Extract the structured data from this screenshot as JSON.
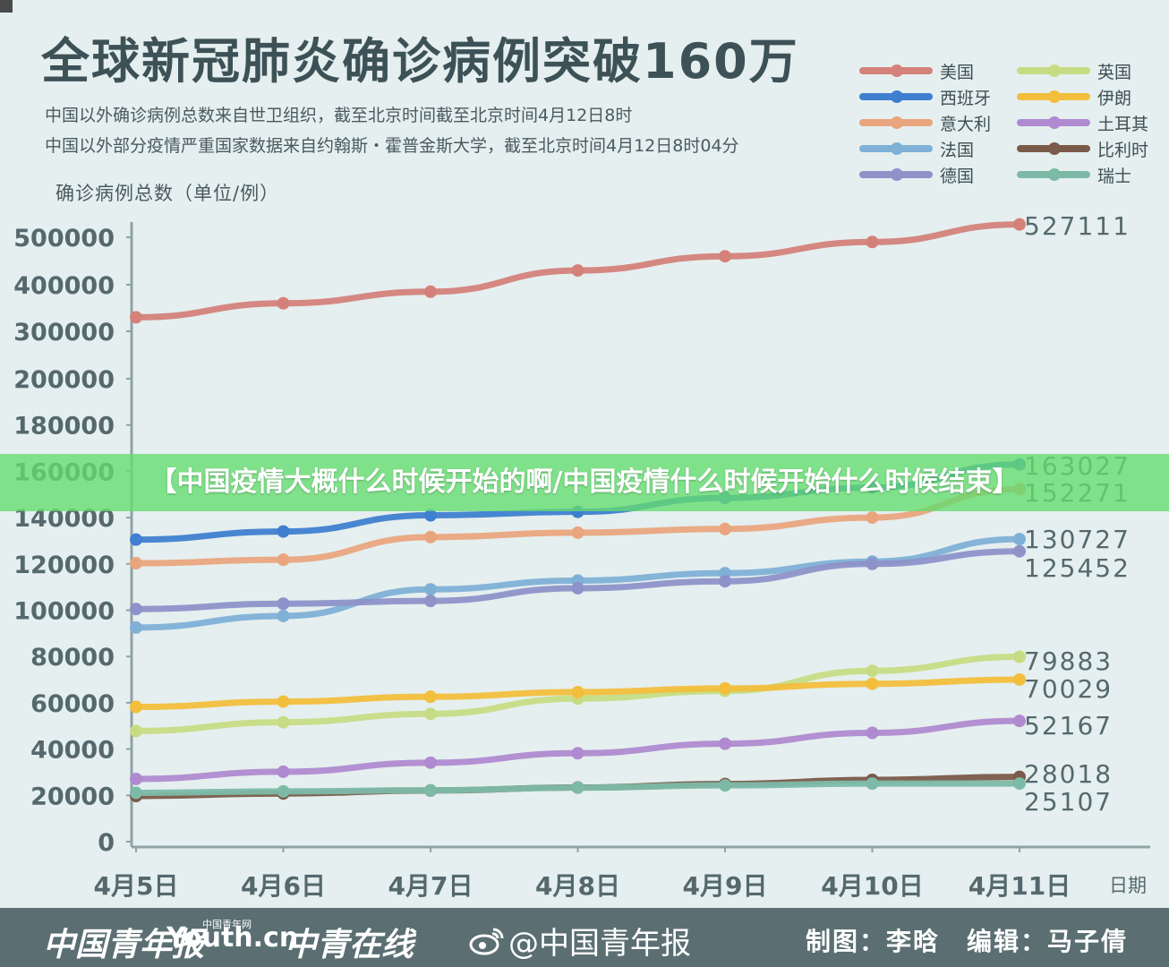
{
  "title": "全球新冠肺炎确诊病例突破160万",
  "notes": [
    "中国以外确诊病例总数来自世卫组织，截至北京时间截至北京时间4月12日8时",
    "中国以外部分疫情严重国家数据来自约翰斯・霍普金斯大学，截至北京时间4月12日8时04分"
  ],
  "banner": "【中国疫情大概什么时候开始的啊/中国疫情什么时候开始什么时候结束】",
  "footer": {
    "logo1": "中国青年报",
    "logo2": "Youth.cn",
    "logo2_small": "中国青年网",
    "logo3": "中青在线",
    "weibo": "@中国青年报",
    "credit": "制图：李晗　编辑：马子倩"
  },
  "colors": {
    "background": "#e5efef",
    "axis": "#8fa3a6",
    "tick_text": "#55696d",
    "value_text": "#55696d",
    "banner": "#64dc6e",
    "footer": "#5b6f72"
  },
  "chart_data": {
    "type": "line",
    "ylabel": "确诊病例总数（单位/例）",
    "xlabel": "日期",
    "categories": [
      "4月5日",
      "4月6日",
      "4月7日",
      "4月8日",
      "4月9日",
      "4月10日",
      "4月11日"
    ],
    "y_ticks": [
      "0",
      "20000",
      "40000",
      "60000",
      "80000",
      "100000",
      "120000",
      "140000",
      "160000",
      "180000",
      "200000",
      "300000",
      "400000",
      "500000"
    ],
    "y_scale_note": "broken axis: linear 0-200000, then 100000 per step up to 500000",
    "grid": false,
    "legend_position": "top-right",
    "series": [
      {
        "name": "美国",
        "color": "#d4817a",
        "values": [
          330000,
          360000,
          385000,
          430000,
          460000,
          490000,
          527111
        ],
        "end_label": "527111"
      },
      {
        "name": "西班牙",
        "color": "#3f7fcf",
        "values": [
          130500,
          134000,
          141000,
          142500,
          148500,
          153000,
          163027
        ],
        "end_label": "163027"
      },
      {
        "name": "意大利",
        "color": "#e9a57e",
        "values": [
          120300,
          121800,
          131600,
          133500,
          135100,
          140000,
          152271
        ],
        "end_label": "152271"
      },
      {
        "name": "法国",
        "color": "#7fb0d6",
        "values": [
          92500,
          97500,
          109000,
          112800,
          116000,
          121000,
          130727
        ],
        "end_label": "130727"
      },
      {
        "name": "德国",
        "color": "#8e92c9",
        "values": [
          100500,
          102800,
          104000,
          109500,
          112500,
          120000,
          125452
        ],
        "end_label": "125452"
      },
      {
        "name": "英国",
        "color": "#c6dc84",
        "values": [
          47800,
          51600,
          55200,
          61800,
          65100,
          73800,
          79883
        ],
        "end_label": "79883"
      },
      {
        "name": "伊朗",
        "color": "#f2be3c",
        "values": [
          58200,
          60500,
          62600,
          64600,
          66200,
          68200,
          70029
        ],
        "end_label": "70029"
      },
      {
        "name": "土耳其",
        "color": "#b08ad0",
        "values": [
          27100,
          30200,
          34100,
          38200,
          42300,
          47000,
          52167
        ],
        "end_label": "52167"
      },
      {
        "name": "比利时",
        "color": "#7a5a4a",
        "values": [
          19700,
          20800,
          22100,
          23400,
          24900,
          26700,
          28018
        ],
        "end_label": "28018"
      },
      {
        "name": "瑞士",
        "color": "#7cbaa6",
        "values": [
          21100,
          21700,
          22200,
          23300,
          24300,
          25100,
          25107
        ],
        "end_label": "25107"
      }
    ]
  }
}
